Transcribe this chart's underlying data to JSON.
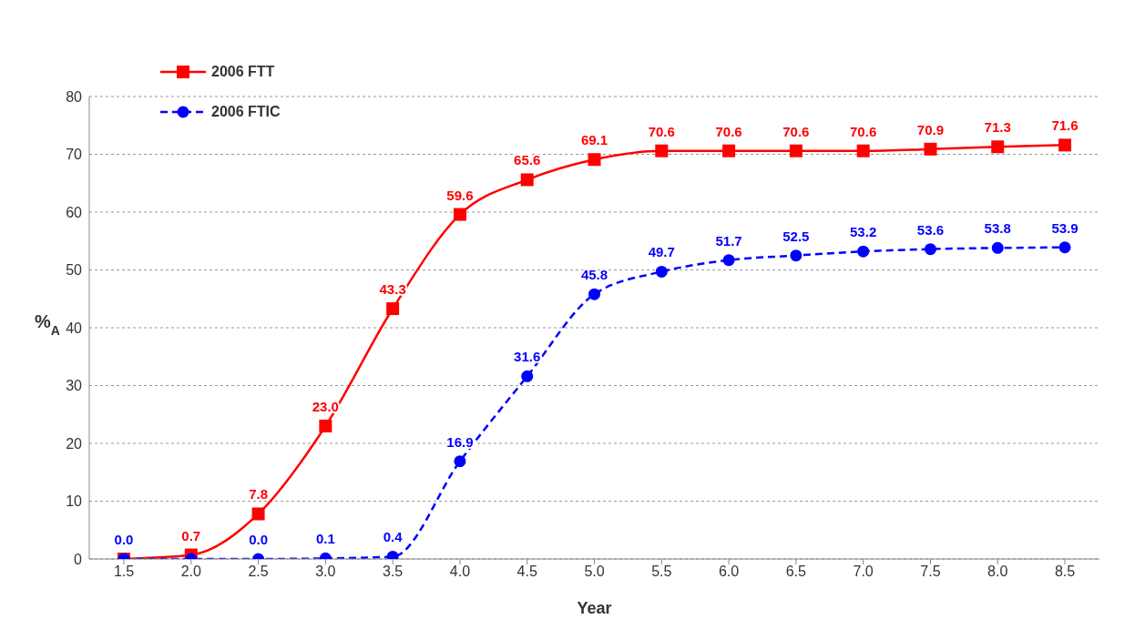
{
  "chart_data": {
    "type": "line",
    "xlabel": "Year",
    "ylabel": "%$_{A}$",
    "categories": [
      "1.5",
      "2.0",
      "2.5",
      "3.0",
      "3.5",
      "4.0",
      "4.5",
      "5.0",
      "5.5",
      "6.0",
      "6.5",
      "7.0",
      "7.5",
      "8.0",
      "8.5"
    ],
    "series": [
      {
        "name": "2006 FTT",
        "color": "#ff0000",
        "marker": "square",
        "line_style": "solid",
        "values": [
          0,
          0.7,
          7.8,
          23.0,
          43.3,
          59.6,
          65.6,
          69.1,
          70.6,
          70.6,
          70.6,
          70.6,
          70.9,
          71.3,
          71.6
        ],
        "value_labels": [
          null,
          "0.7",
          "7.8",
          "23.0",
          "43.3",
          "59.6",
          "65.6",
          "69.1",
          "70.6",
          "70.6",
          "70.6",
          "70.6",
          "70.9",
          "71.3",
          "71.6"
        ]
      },
      {
        "name": "2006 FTIC",
        "color": "#0000ff",
        "marker": "circle",
        "line_style": "dashed",
        "values": [
          0.0,
          0,
          0.0,
          0.1,
          0.4,
          16.9,
          31.6,
          45.8,
          49.7,
          51.7,
          52.5,
          53.2,
          53.6,
          53.8,
          53.9
        ],
        "value_labels": [
          "0.0",
          null,
          "0.0",
          "0.1",
          "0.4",
          "16.9",
          "31.6",
          "45.8",
          "49.7",
          "51.7",
          "52.5",
          "53.2",
          "53.6",
          "53.8",
          "53.9"
        ]
      }
    ],
    "ylim": [
      0,
      80
    ],
    "yticks": [
      0,
      10,
      20,
      30,
      40,
      50,
      60,
      70,
      80
    ],
    "grid": "y",
    "legend": "top left"
  }
}
